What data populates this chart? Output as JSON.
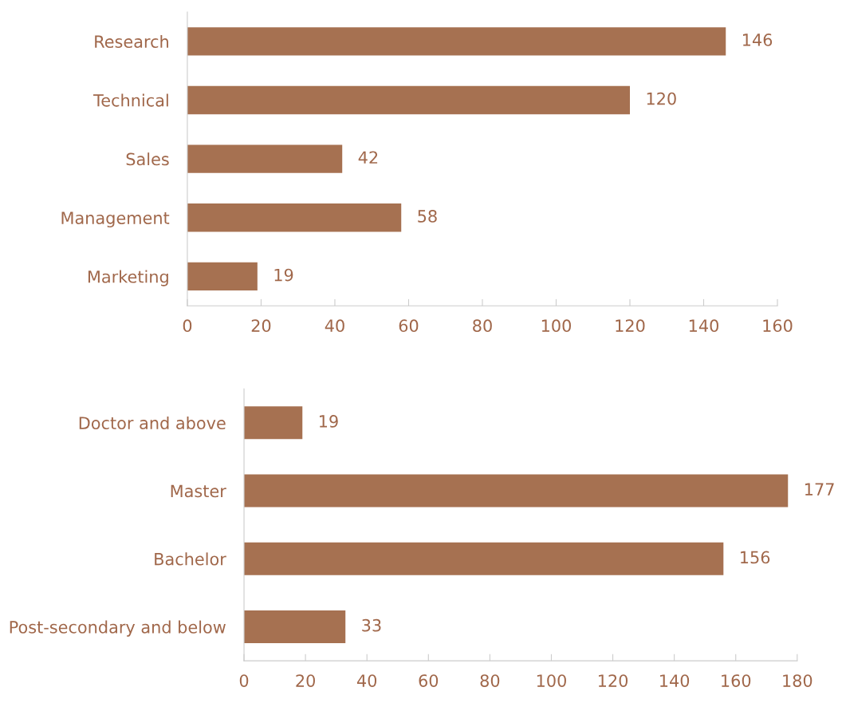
{
  "chart_data": [
    {
      "type": "bar",
      "orientation": "horizontal",
      "categories": [
        "Research",
        "Technical",
        "Sales",
        "Management",
        "Marketing"
      ],
      "values": [
        146,
        120,
        42,
        58,
        19
      ],
      "color": "#a67151",
      "xlim": [
        0,
        160
      ],
      "xticks": [
        0,
        20,
        40,
        60,
        80,
        100,
        120,
        140,
        160
      ],
      "data_labels": true,
      "grid": false,
      "legend": false
    },
    {
      "type": "bar",
      "orientation": "horizontal",
      "categories": [
        "Doctor and above",
        "Master",
        "Bachelor",
        "Post-secondary and below"
      ],
      "values": [
        19,
        177,
        156,
        33
      ],
      "color": "#a67151",
      "xlim": [
        0,
        180
      ],
      "xticks": [
        0,
        20,
        40,
        60,
        80,
        100,
        120,
        140,
        160,
        180
      ],
      "data_labels": true,
      "grid": false,
      "legend": false
    }
  ]
}
